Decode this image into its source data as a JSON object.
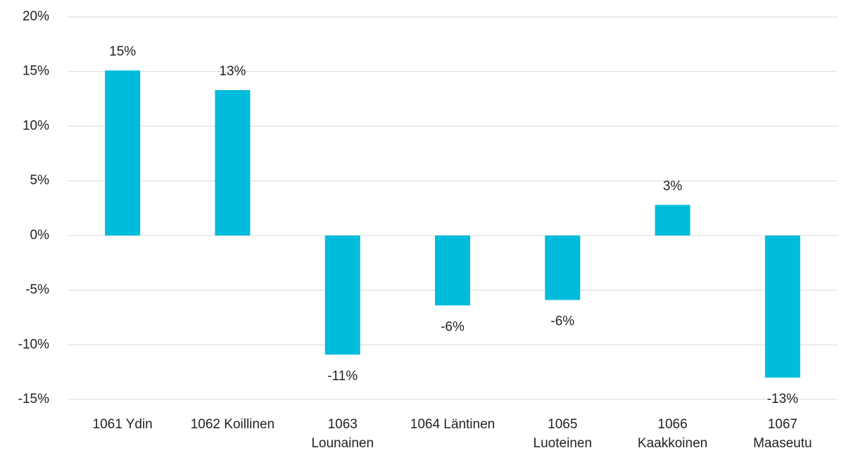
{
  "chart_data": {
    "type": "bar",
    "categories": [
      "1061 Ydin",
      "1062 Koillinen",
      "1063 Lounainen",
      "1064 Läntinen",
      "1065 Luoteinen",
      "1066 Kaakkoinen",
      "1067 Maaseutu"
    ],
    "values": [
      15.1,
      13.3,
      -10.9,
      -6.4,
      -5.9,
      2.8,
      -13.0
    ],
    "value_labels": [
      "15%",
      "13%",
      "-11%",
      "-6%",
      "-6%",
      "3%",
      "-13%"
    ],
    "color": "#00bcdc",
    "ylim": [
      -15,
      20
    ],
    "yticks": [
      {
        "value": -15,
        "label": "-15%"
      },
      {
        "value": -10,
        "label": "-10%"
      },
      {
        "value": -5,
        "label": "-5%"
      },
      {
        "value": 0,
        "label": "0%"
      },
      {
        "value": 5,
        "label": "5%"
      },
      {
        "value": 10,
        "label": "10%"
      },
      {
        "value": 15,
        "label": "15%"
      },
      {
        "value": 20,
        "label": "20%"
      }
    ],
    "grid": true
  }
}
